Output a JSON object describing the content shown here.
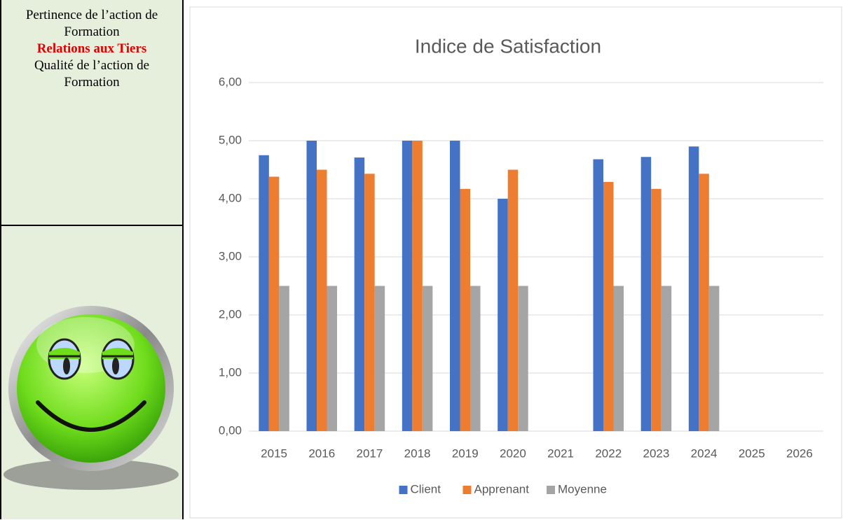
{
  "sidebar": {
    "lines": [
      "Pertinence de l’action de Formation",
      "Relations aux Tiers",
      "Qualité de l’action de Formation"
    ]
  },
  "chart_data": {
    "type": "bar",
    "title": "Indice de Satisfaction",
    "categories": [
      "2015",
      "2016",
      "2017",
      "2018",
      "2019",
      "2020",
      "2021",
      "2022",
      "2023",
      "2024",
      "2025",
      "2026"
    ],
    "series": [
      {
        "name": "Client",
        "color": "#4472c4",
        "values": [
          4.75,
          5.0,
          4.71,
          5.0,
          5.0,
          4.0,
          null,
          4.68,
          4.72,
          4.9,
          null,
          null
        ]
      },
      {
        "name": "Apprenant",
        "color": "#ed7d31",
        "values": [
          4.38,
          4.5,
          4.43,
          5.0,
          4.17,
          4.5,
          null,
          4.29,
          4.17,
          4.43,
          null,
          null
        ]
      },
      {
        "name": "Moyenne",
        "color": "#a5a5a5",
        "values": [
          2.5,
          2.5,
          2.5,
          2.5,
          2.5,
          2.5,
          null,
          2.5,
          2.5,
          2.5,
          null,
          null
        ]
      }
    ],
    "ylim": [
      0,
      6
    ],
    "yticks": [
      {
        "value": 0,
        "label": "0,00"
      },
      {
        "value": 1,
        "label": "1,00"
      },
      {
        "value": 2,
        "label": "2,00"
      },
      {
        "value": 3,
        "label": "3,00"
      },
      {
        "value": 4,
        "label": "4,00"
      },
      {
        "value": 5,
        "label": "5,00"
      },
      {
        "value": 6,
        "label": "6,00"
      }
    ],
    "grid": true,
    "legend": "bottom"
  }
}
